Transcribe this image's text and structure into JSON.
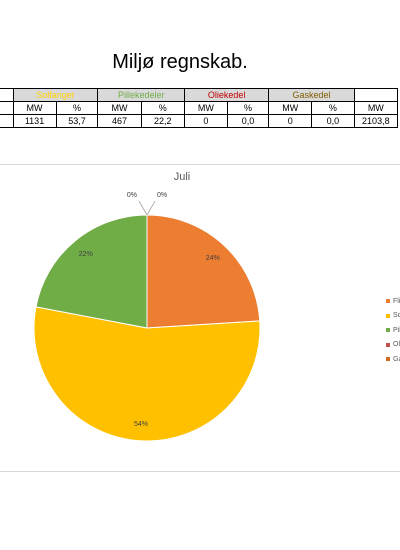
{
  "page_title": "Miljø regnskab.",
  "table": {
    "groups": [
      {
        "label": "Solfanger",
        "cls": "grp-sol"
      },
      {
        "label": "Pillekedeler",
        "cls": "grp-pil"
      },
      {
        "label": "Oliekedel",
        "cls": "grp-oli"
      },
      {
        "label": "Gaskedel",
        "cls": "grp-gas"
      }
    ],
    "sub_headers": [
      "MW",
      "%",
      "MW",
      "%",
      "MW",
      "%",
      "MW",
      "%",
      "MW"
    ],
    "values": [
      "1131",
      "53,7",
      "467",
      "22,2",
      "0",
      "0,0",
      "0",
      "0,0",
      "2103,8"
    ]
  },
  "chart_data": {
    "type": "pie",
    "title": "Juli",
    "slices": [
      {
        "name": "Flis",
        "value": 24,
        "label": "24%",
        "color": "#ed7d31"
      },
      {
        "name": "Solfanger",
        "value": 54,
        "label": "54%",
        "color": "#ffc000"
      },
      {
        "name": "Pillekedeler",
        "value": 22,
        "label": "22%",
        "color": "#70ad47"
      },
      {
        "name": "Oliekedel",
        "value": 0,
        "label": "0%",
        "color": "#c0504d"
      },
      {
        "name": "Gaskedel",
        "value": 0,
        "label": "0%",
        "color": "#d36a1f"
      }
    ],
    "legend_labels": [
      "Fli",
      "So",
      "Pil",
      "Ol",
      "Ga"
    ],
    "legend_position": "right"
  }
}
